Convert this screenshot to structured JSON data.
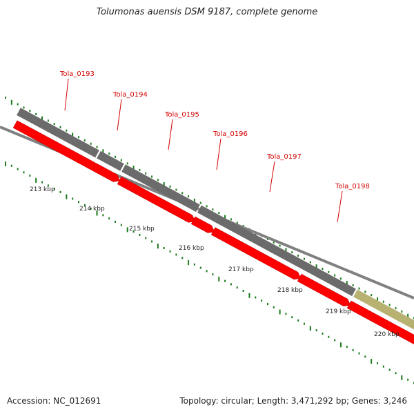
{
  "title": "Tolumonas auensis DSM 9187, complete genome",
  "footer": {
    "accession": "Accession: NC_012691",
    "summary": "Topology: circular; Length: 3,471,292 bp; Genes: 3,246"
  },
  "genes": [
    {
      "label": "Tola_0193"
    },
    {
      "label": "Tola_0194"
    },
    {
      "label": "Tola_0195"
    },
    {
      "label": "Tola_0196"
    },
    {
      "label": "Tola_0197"
    },
    {
      "label": "Tola_0198"
    }
  ],
  "ruler": [
    "213 kbp",
    "214 kbp",
    "215 kbp",
    "216 kbp",
    "217 kbp",
    "218 kbp",
    "219 kbp",
    "220 kbp"
  ],
  "colors": {
    "cds": "#ff0000",
    "gene": "#6b6b6b",
    "other_feature": "#b8b272",
    "backbone": "#808080",
    "tick": "#1a7a1a",
    "label": "#d40000"
  }
}
